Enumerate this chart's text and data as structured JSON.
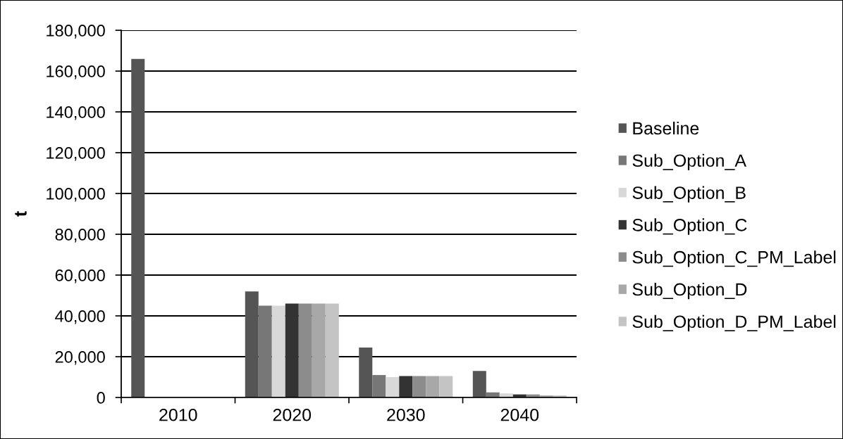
{
  "chart_data": {
    "type": "bar",
    "ylabel": "t",
    "categories": [
      "2010",
      "2020",
      "2030",
      "2040"
    ],
    "series": [
      {
        "name": "Baseline",
        "color": "#555555",
        "values": [
          166000,
          52000,
          24500,
          13000
        ]
      },
      {
        "name": "Sub_Option_A",
        "color": "#777777",
        "values": [
          0,
          45000,
          11000,
          2500
        ]
      },
      {
        "name": "Sub_Option_B",
        "color": "#d8d8d8",
        "values": [
          0,
          45000,
          10000,
          2000
        ]
      },
      {
        "name": "Sub_Option_C",
        "color": "#333333",
        "values": [
          0,
          46000,
          10500,
          1500
        ]
      },
      {
        "name": "Sub_Option_C_PM_Label",
        "color": "#8c8c8c",
        "values": [
          0,
          46000,
          10500,
          1500
        ]
      },
      {
        "name": "Sub_Option_D",
        "color": "#a8a8a8",
        "values": [
          0,
          46000,
          10500,
          1000
        ]
      },
      {
        "name": "Sub_Option_D_PM_Label",
        "color": "#c4c4c4",
        "values": [
          0,
          46000,
          10500,
          1000
        ]
      }
    ],
    "ylim": [
      0,
      180000
    ],
    "yticks": [
      {
        "value": 0,
        "label": "0"
      },
      {
        "value": 20000,
        "label": "20,000"
      },
      {
        "value": 40000,
        "label": "40,000"
      },
      {
        "value": 60000,
        "label": "60,000"
      },
      {
        "value": 80000,
        "label": "80,000"
      },
      {
        "value": 100000,
        "label": "100,000"
      },
      {
        "value": 120000,
        "label": "120,000"
      },
      {
        "value": 140000,
        "label": "140,000"
      },
      {
        "value": 160000,
        "label": "160,000"
      },
      {
        "value": 180000,
        "label": "180,000"
      }
    ],
    "grid": "y",
    "legend": "right"
  }
}
